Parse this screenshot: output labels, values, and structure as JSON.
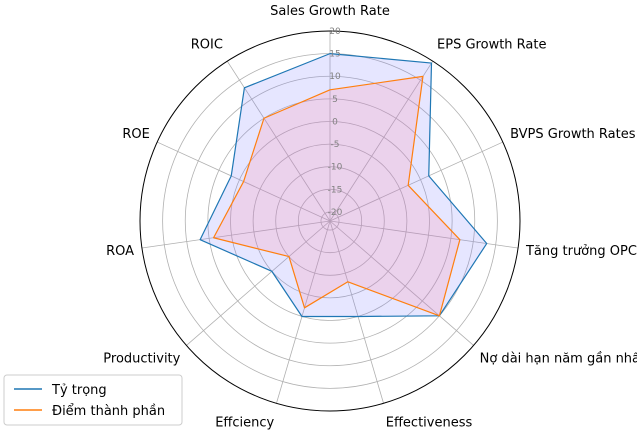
{
  "chart_data": {
    "type": "radar",
    "title": "",
    "categories": [
      "Sales Growth Rate",
      "EPS Growth Rate",
      "BVPS Growth Rates",
      "Tăng trưởng OPC LCDTKD",
      "Nợ dài hạn năm gần nhất",
      "Effectiveness",
      "Effciency",
      "Productivity",
      "ROA",
      "ROE",
      "ROIC"
    ],
    "r_ticks": [
      "-20",
      "-15",
      "-10",
      "-5",
      "0",
      "5",
      "10",
      "15",
      "20"
    ],
    "rlim": [
      -22,
      20
    ],
    "grid": true,
    "legend_position": "lower-left",
    "series": [
      {
        "name": "Tỷ trọng",
        "color": "#1f77b4",
        "fill": "#8080ff",
        "values": [
          15,
          19.5,
          2,
          13,
          10,
          0,
          0,
          -5,
          7,
          2,
          13
        ]
      },
      {
        "name": "Điểm thành phần",
        "color": "#ff7f0e",
        "fill": "#ff80a0",
        "values": [
          7,
          16,
          -3,
          7,
          10,
          -8,
          -2,
          -10,
          4,
          -1,
          5
        ]
      }
    ]
  }
}
